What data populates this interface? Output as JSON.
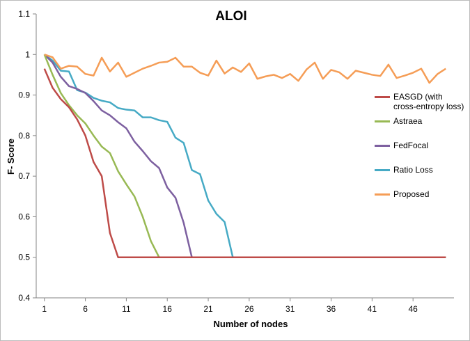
{
  "chart_data": {
    "type": "line",
    "title": "ALOI",
    "x_label": "Number of nodes",
    "y_label": "F- Score",
    "x": [
      1,
      2,
      3,
      4,
      5,
      6,
      7,
      8,
      9,
      10,
      11,
      12,
      13,
      14,
      15,
      16,
      17,
      18,
      19,
      20,
      21,
      22,
      23,
      24,
      25,
      26,
      27,
      28,
      29,
      30,
      31,
      32,
      33,
      34,
      35,
      36,
      37,
      38,
      39,
      40,
      41,
      42,
      43,
      44,
      45,
      46,
      47,
      48,
      49,
      50
    ],
    "xlim": [
      0,
      51
    ],
    "xticks": [
      1,
      6,
      11,
      16,
      21,
      26,
      31,
      36,
      41,
      46
    ],
    "ylim": [
      0.4,
      1.1
    ],
    "yticks": [
      0.4,
      0.5,
      0.6,
      0.7,
      0.8,
      0.9,
      1,
      1.1
    ],
    "grid": false,
    "series": [
      {
        "name": "EASGD (with cross-entropy loss)",
        "color": "#be4b48",
        "values": [
          0.965,
          0.918,
          0.89,
          0.87,
          0.84,
          0.8,
          0.735,
          0.7,
          0.56,
          0.5,
          0.5,
          0.5,
          0.5,
          0.5,
          0.5,
          0.5,
          0.5,
          0.5,
          0.5,
          0.5,
          0.5,
          0.5,
          0.5,
          0.5,
          0.5,
          0.5,
          0.5,
          0.5,
          0.5,
          0.5,
          0.5,
          0.5,
          0.5,
          0.5,
          0.5,
          0.5,
          0.5,
          0.5,
          0.5,
          0.5,
          0.5,
          0.5,
          0.5,
          0.5,
          0.5,
          0.5,
          0.5,
          0.5,
          0.5,
          0.5
        ]
      },
      {
        "name": "Astraea",
        "color": "#98b954",
        "values": [
          1.0,
          0.95,
          0.905,
          0.875,
          0.85,
          0.83,
          0.8,
          0.773,
          0.757,
          0.712,
          0.68,
          0.65,
          0.6,
          0.54,
          0.5,
          0.5,
          0.5,
          0.5,
          0.5,
          0.5,
          0.5,
          0.5,
          0.5,
          0.5,
          0.5,
          0.5,
          0.5,
          0.5,
          0.5,
          0.5,
          0.5,
          0.5,
          0.5,
          0.5,
          0.5,
          0.5,
          0.5,
          0.5,
          0.5,
          0.5,
          0.5,
          0.5,
          0.5,
          0.5,
          0.5,
          0.5,
          0.5,
          0.5,
          0.5,
          0.5
        ]
      },
      {
        "name": "FedFocal",
        "color": "#7d60a0",
        "values": [
          1.0,
          0.98,
          0.945,
          0.922,
          0.915,
          0.905,
          0.885,
          0.862,
          0.85,
          0.833,
          0.818,
          0.785,
          0.762,
          0.737,
          0.72,
          0.672,
          0.647,
          0.585,
          0.5,
          0.5,
          0.5,
          0.5,
          0.5,
          0.5,
          0.5,
          0.5,
          0.5,
          0.5,
          0.5,
          0.5,
          0.5,
          0.5,
          0.5,
          0.5,
          0.5,
          0.5,
          0.5,
          0.5,
          0.5,
          0.5,
          0.5,
          0.5,
          0.5,
          0.5,
          0.5,
          0.5,
          0.5,
          0.5,
          0.5,
          0.5
        ]
      },
      {
        "name": "Ratio Loss",
        "color": "#46aac5",
        "values": [
          1.0,
          0.985,
          0.96,
          0.958,
          0.912,
          0.906,
          0.893,
          0.886,
          0.882,
          0.868,
          0.864,
          0.862,
          0.845,
          0.845,
          0.838,
          0.834,
          0.795,
          0.782,
          0.715,
          0.705,
          0.64,
          0.607,
          0.587,
          0.5,
          0.5,
          0.5,
          0.5,
          0.5,
          0.5,
          0.5,
          0.5,
          0.5,
          0.5,
          0.5,
          0.5,
          0.5,
          0.5,
          0.5,
          0.5,
          0.5,
          0.5,
          0.5,
          0.5,
          0.5,
          0.5,
          0.5,
          0.5,
          0.5,
          0.5,
          0.5
        ]
      },
      {
        "name": "Proposed",
        "color": "#f59d56",
        "values": [
          1.0,
          0.993,
          0.965,
          0.972,
          0.97,
          0.952,
          0.948,
          0.992,
          0.958,
          0.98,
          0.945,
          0.955,
          0.965,
          0.972,
          0.98,
          0.982,
          0.992,
          0.97,
          0.97,
          0.955,
          0.948,
          0.985,
          0.953,
          0.968,
          0.957,
          0.978,
          0.94,
          0.946,
          0.95,
          0.942,
          0.952,
          0.935,
          0.963,
          0.98,
          0.94,
          0.962,
          0.956,
          0.94,
          0.96,
          0.955,
          0.95,
          0.947,
          0.975,
          0.942,
          0.948,
          0.955,
          0.965,
          0.93,
          0.952,
          0.965
        ]
      }
    ]
  }
}
